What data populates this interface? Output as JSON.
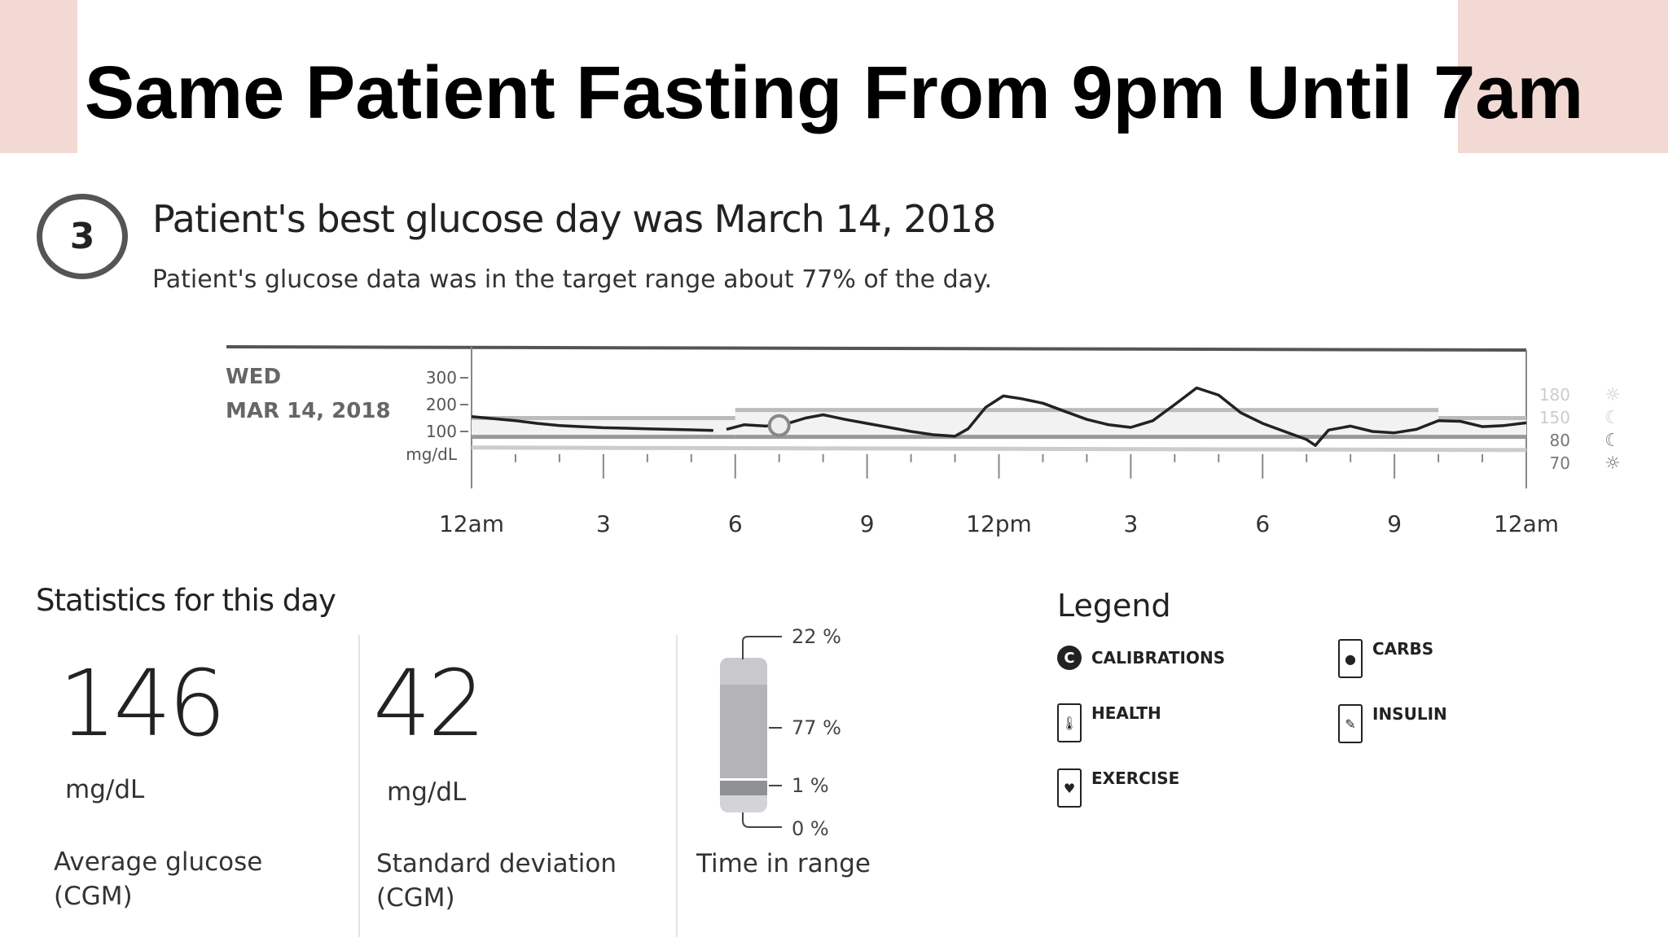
{
  "slide_title": "Same Patient Fasting From 9pm Until 7am",
  "section_number": "3",
  "heading": "Patient's best glucose day was March 14, 2018",
  "subheading": "Patient's glucose data was in the target range about 77% of the day.",
  "chart_data": {
    "type": "line",
    "day_label": "WED",
    "date_label": "MAR 14, 2018",
    "ylabel": "mg/dL",
    "y_ticks": [
      "300",
      "200",
      "100"
    ],
    "ylim": [
      0,
      400
    ],
    "x_ticks": [
      "12am",
      "3",
      "6",
      "9",
      "12pm",
      "3",
      "6",
      "9",
      "12am"
    ],
    "xlim_hours": [
      0,
      24
    ],
    "target_range": [
      {
        "from": 0,
        "to": 6,
        "low": 80,
        "high": 150
      },
      {
        "from": 6,
        "to": 22,
        "low": 80,
        "high": 180
      },
      {
        "from": 22,
        "to": 24,
        "low": 80,
        "high": 150
      }
    ],
    "range_labels": [
      {
        "value": "180",
        "icon": "sun-icon"
      },
      {
        "value": "150",
        "icon": "moon-icon"
      },
      {
        "value": "80",
        "icon": "moon-icon"
      },
      {
        "value": "70",
        "icon": "sun-icon"
      }
    ],
    "series": [
      {
        "points": [
          [
            0,
            155
          ],
          [
            0.5,
            148
          ],
          [
            1,
            140
          ],
          [
            1.5,
            130
          ],
          [
            2,
            122
          ],
          [
            2.5,
            118
          ],
          [
            3,
            114
          ],
          [
            3.5,
            112
          ],
          [
            4,
            110
          ],
          [
            4.5,
            108
          ],
          [
            5,
            106
          ],
          [
            5.5,
            104
          ]
        ]
      },
      {
        "points": [
          [
            5.8,
            108
          ],
          [
            6.2,
            125
          ],
          [
            6.7,
            120
          ],
          [
            7.2,
            130
          ],
          [
            7.6,
            150
          ],
          [
            8,
            162
          ],
          [
            8.5,
            145
          ],
          [
            9,
            130
          ],
          [
            9.5,
            115
          ],
          [
            10,
            100
          ],
          [
            10.5,
            88
          ],
          [
            11,
            82
          ],
          [
            11.3,
            110
          ],
          [
            11.7,
            190
          ],
          [
            12.1,
            232
          ],
          [
            12.5,
            222
          ],
          [
            13,
            205
          ],
          [
            13.5,
            175
          ],
          [
            14,
            145
          ],
          [
            14.5,
            125
          ],
          [
            15,
            115
          ],
          [
            15.5,
            140
          ],
          [
            16,
            200
          ],
          [
            16.5,
            262
          ],
          [
            17,
            235
          ],
          [
            17.5,
            170
          ],
          [
            18,
            130
          ],
          [
            18.5,
            100
          ],
          [
            19,
            70
          ],
          [
            19.2,
            48
          ],
          [
            19.5,
            105
          ],
          [
            20,
            120
          ],
          [
            20.5,
            100
          ],
          [
            21,
            95
          ],
          [
            21.5,
            108
          ],
          [
            22,
            140
          ],
          [
            22.5,
            138
          ],
          [
            23,
            118
          ],
          [
            23.5,
            122
          ],
          [
            24,
            132
          ]
        ]
      }
    ],
    "calibration_marker_hour": 7.0
  },
  "stats": {
    "title": "Statistics for this day",
    "average": {
      "value": "146",
      "unit": "mg/dL",
      "label1": "Average glucose",
      "label2": "(CGM)"
    },
    "sd": {
      "value": "42",
      "unit": "mg/dL",
      "label1": "Standard deviation",
      "label2": "(CGM)"
    },
    "time_in_range": {
      "label": "Time in range",
      "above": "22 %",
      "in": "77 %",
      "below": "1 %",
      "very_low": "0 %",
      "above_value": 22,
      "in_value": 77,
      "below_value": 1
    }
  },
  "legend": {
    "title": "Legend",
    "items": [
      {
        "label": "CALIBRATIONS",
        "icon": "calibration-icon"
      },
      {
        "label": "CARBS",
        "icon": "apple-icon"
      },
      {
        "label": "HEALTH",
        "icon": "thermometer-icon"
      },
      {
        "label": "INSULIN",
        "icon": "pen-icon"
      },
      {
        "label": "EXERCISE",
        "icon": "heart-icon"
      }
    ]
  },
  "colors": {
    "accent_corner": "#f3d9d3",
    "line": "#222222",
    "band": "#bbbbbb"
  }
}
